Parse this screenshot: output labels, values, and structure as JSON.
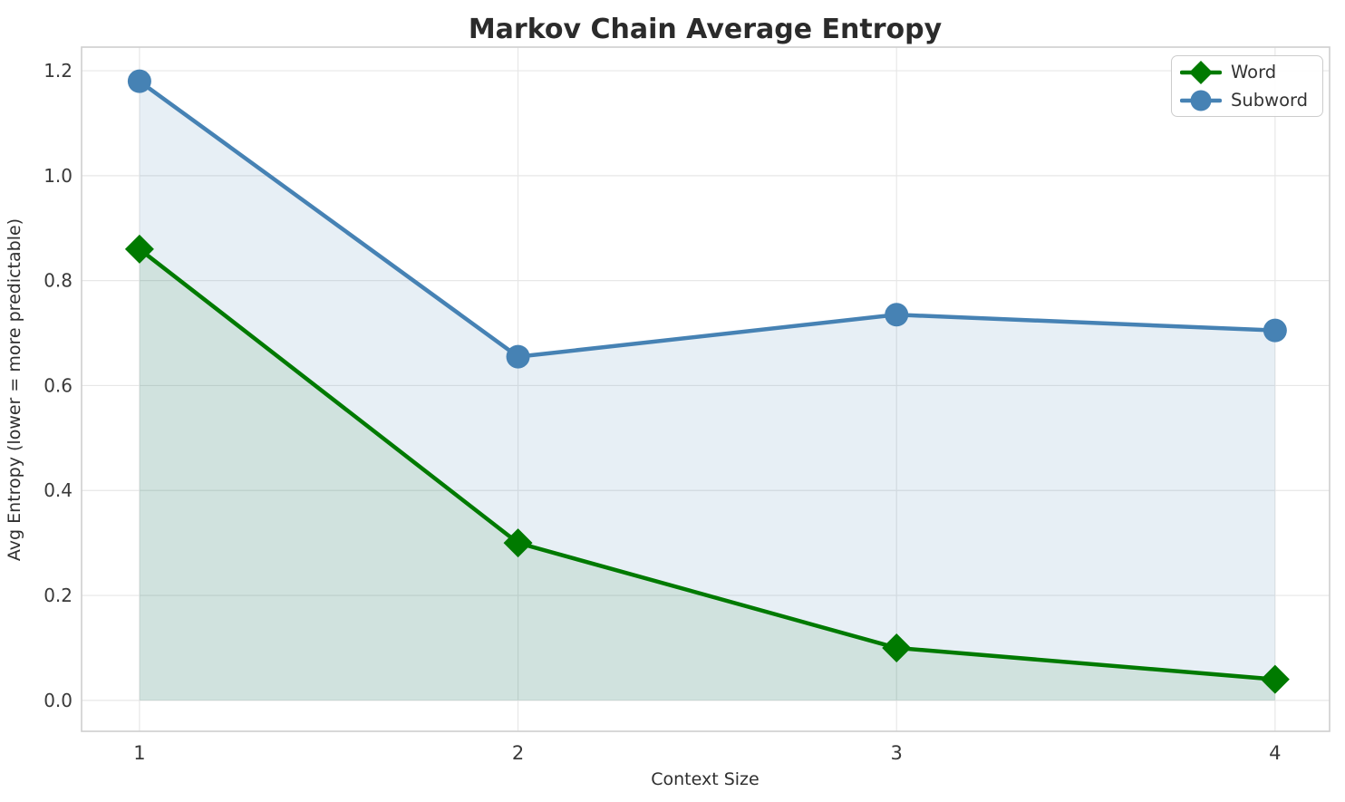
{
  "chart_data": {
    "type": "line",
    "title": "Markov Chain Average Entropy",
    "xlabel": "Context Size",
    "ylabel": "Avg Entropy (lower = more predictable)",
    "x": [
      1,
      2,
      3,
      4
    ],
    "xtick_labels": [
      "1",
      "2",
      "3",
      "4"
    ],
    "yticks": [
      0.0,
      0.2,
      0.4,
      0.6,
      0.8,
      1.0,
      1.2
    ],
    "ytick_labels": [
      "0.0",
      "0.2",
      "0.4",
      "0.6",
      "0.8",
      "1.0",
      "1.2"
    ],
    "xlim": [
      0.847,
      4.144
    ],
    "ylim": [
      -0.059,
      1.245
    ],
    "grid": true,
    "legend_position": "upper right",
    "series": [
      {
        "name": "Word",
        "values": [
          0.86,
          0.3,
          0.1,
          0.04
        ],
        "color": "#007a00",
        "marker": "diamond",
        "fill_to_zero": true,
        "fill_opacity": 0.1
      },
      {
        "name": "Subword",
        "values": [
          1.18,
          0.655,
          0.735,
          0.705
        ],
        "color": "#4682b4",
        "marker": "circle",
        "fill_to_zero": true,
        "fill_opacity": 0.13
      }
    ],
    "style": {
      "grid_color": "#e7e7e7",
      "axis_border_color": "#cfcfcf",
      "tick_label_color": "#3a3a3a",
      "title_color": "#2b2b2b",
      "label_color": "#2f2f2f",
      "line_width": 4.5,
      "marker_size_circle": 13,
      "marker_size_diamond": 16
    }
  }
}
